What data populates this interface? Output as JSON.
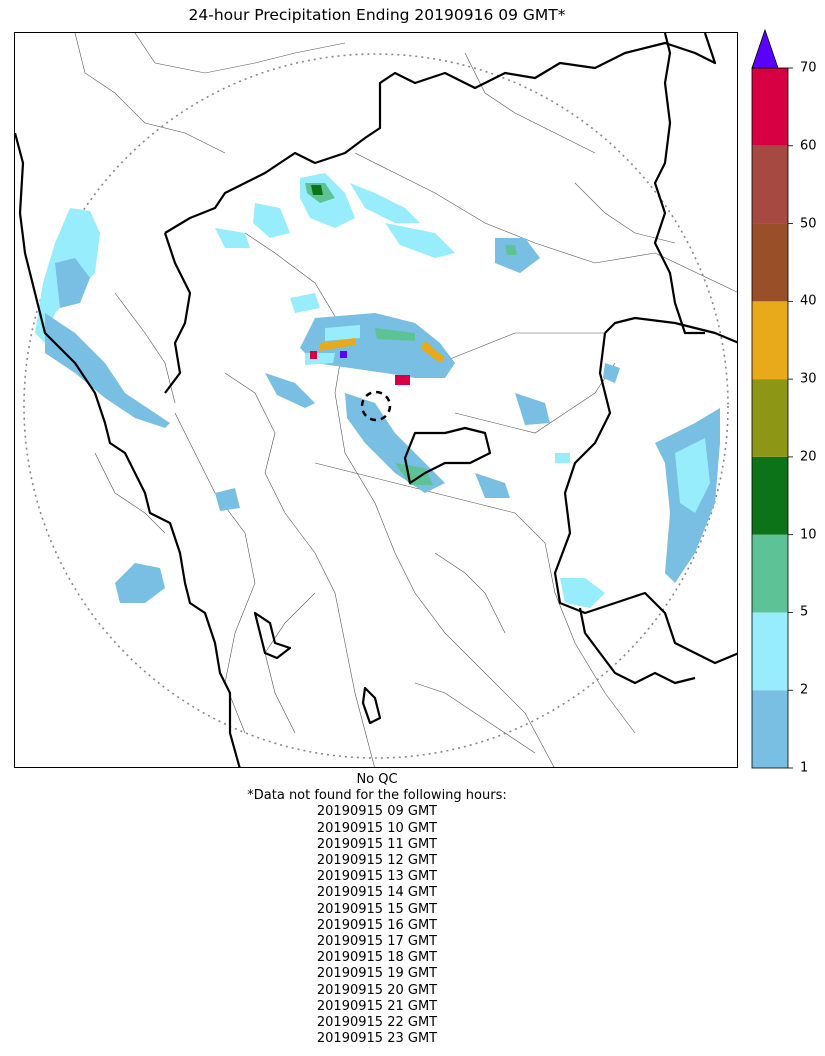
{
  "title": "24-hour Precipitation Ending 20190916 09 GMT*",
  "colorbar": {
    "bins": [
      {
        "from": 1,
        "to": 2,
        "color": "#78bfe3"
      },
      {
        "from": 2,
        "to": 5,
        "color": "#97edfb"
      },
      {
        "from": 5,
        "to": 10,
        "color": "#5dc396"
      },
      {
        "from": 10,
        "to": 20,
        "color": "#0d7319"
      },
      {
        "from": 20,
        "to": 30,
        "color": "#8d9615"
      },
      {
        "from": 30,
        "to": 40,
        "color": "#e8a91a"
      },
      {
        "from": 40,
        "to": 50,
        "color": "#994f28"
      },
      {
        "from": 50,
        "to": 60,
        "color": "#a64a41"
      },
      {
        "from": 60,
        "to": 70,
        "color": "#d60042"
      }
    ],
    "over_color": "#5a00ff",
    "tick_labels": [
      "1",
      "2",
      "5",
      "10",
      "20",
      "30",
      "40",
      "50",
      "60",
      "70"
    ]
  },
  "notes": {
    "qc": "No QC",
    "missing_header": "*Data not found for the following hours:",
    "missing_hours": [
      "20190915 09 GMT",
      "20190915 10 GMT",
      "20190915 11 GMT",
      "20190915 12 GMT",
      "20190915 13 GMT",
      "20190915 14 GMT",
      "20190915 15 GMT",
      "20190915 16 GMT",
      "20190915 17 GMT",
      "20190915 18 GMT",
      "20190915 19 GMT",
      "20190915 20 GMT",
      "20190915 21 GMT",
      "20190915 22 GMT",
      "20190915 23 GMT"
    ]
  }
}
